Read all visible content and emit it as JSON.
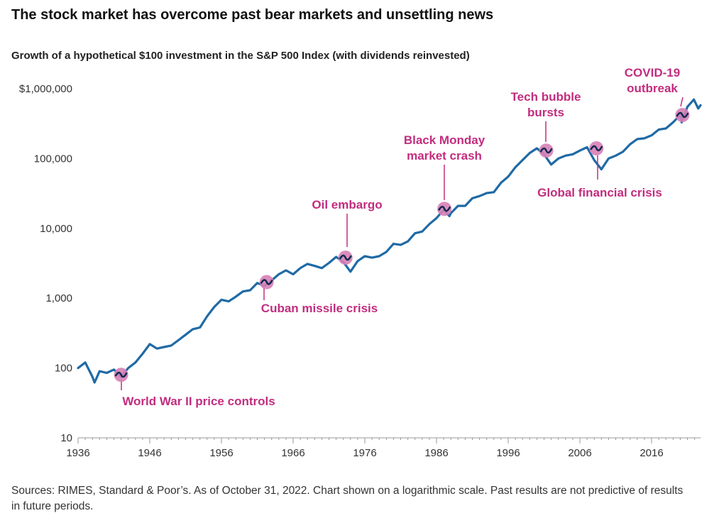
{
  "page": {
    "title": "The stock market has overcome past bear markets and unsettling news",
    "footer": "Sources: RIMES, Standard & Poor’s. As of October 31, 2022. Chart shown on a logarithmic scale. Past results are not predictive of results in future periods."
  },
  "colors": {
    "line": "#1f6aa5",
    "line_dark": "#0d2a4f",
    "marker": "#d77fb6",
    "annotation": "#c22d7e",
    "axis": "#999999"
  },
  "chart_data": {
    "type": "line",
    "title": "Growth of a hypothetical $100 investment in the S&P 500 Index (with dividends reinvested)",
    "xlabel": "",
    "ylabel": "",
    "y_scale": "log",
    "xlim": [
      1936,
      2022.83
    ],
    "ylim": [
      10,
      1000000
    ],
    "x_ticks": [
      1936,
      1946,
      1956,
      1966,
      1976,
      1986,
      1996,
      2006,
      2016
    ],
    "x_tick_labels": [
      "1936",
      "1946",
      "1956",
      "1966",
      "1976",
      "1986",
      "1996",
      "2006",
      "2016"
    ],
    "y_ticks": [
      10,
      100,
      1000,
      10000,
      100000,
      1000000
    ],
    "y_tick_labels": [
      "10",
      "100",
      "1,000",
      "10,000",
      "100,000",
      "$1,000,000"
    ],
    "series": [
      {
        "name": "",
        "points": [
          [
            1936,
            100
          ],
          [
            1937,
            120
          ],
          [
            1938,
            75
          ],
          [
            1938.3,
            62
          ],
          [
            1939,
            90
          ],
          [
            1940,
            85
          ],
          [
            1941,
            95
          ],
          [
            1942,
            75
          ],
          [
            1943,
            100
          ],
          [
            1944,
            120
          ],
          [
            1945,
            160
          ],
          [
            1946,
            220
          ],
          [
            1947,
            190
          ],
          [
            1948,
            200
          ],
          [
            1949,
            210
          ],
          [
            1950,
            250
          ],
          [
            1951,
            300
          ],
          [
            1952,
            360
          ],
          [
            1953,
            380
          ],
          [
            1954,
            550
          ],
          [
            1955,
            750
          ],
          [
            1956,
            950
          ],
          [
            1957,
            900
          ],
          [
            1958,
            1050
          ],
          [
            1959,
            1250
          ],
          [
            1960,
            1300
          ],
          [
            1961,
            1650
          ],
          [
            1962,
            1500
          ],
          [
            1963,
            1800
          ],
          [
            1964,
            2200
          ],
          [
            1965,
            2500
          ],
          [
            1966,
            2200
          ],
          [
            1967,
            2700
          ],
          [
            1968,
            3100
          ],
          [
            1969,
            2900
          ],
          [
            1970,
            2700
          ],
          [
            1971,
            3200
          ],
          [
            1972,
            3900
          ],
          [
            1973,
            3300
          ],
          [
            1974,
            2400
          ],
          [
            1975,
            3400
          ],
          [
            1976,
            4000
          ],
          [
            1977,
            3800
          ],
          [
            1978,
            4000
          ],
          [
            1979,
            4600
          ],
          [
            1980,
            6000
          ],
          [
            1981,
            5800
          ],
          [
            1982,
            6500
          ],
          [
            1983,
            8500
          ],
          [
            1984,
            9000
          ],
          [
            1985,
            11500
          ],
          [
            1986,
            14000
          ],
          [
            1987,
            18500
          ],
          [
            1987.8,
            15000
          ],
          [
            1988,
            16500
          ],
          [
            1989,
            21000
          ],
          [
            1990,
            21000
          ],
          [
            1991,
            27000
          ],
          [
            1992,
            29000
          ],
          [
            1993,
            32000
          ],
          [
            1994,
            33000
          ],
          [
            1995,
            45000
          ],
          [
            1996,
            55000
          ],
          [
            1997,
            75000
          ],
          [
            1998,
            95000
          ],
          [
            1999,
            120000
          ],
          [
            2000,
            140000
          ],
          [
            2001,
            115000
          ],
          [
            2002,
            82000
          ],
          [
            2003,
            100000
          ],
          [
            2004,
            110000
          ],
          [
            2005,
            115000
          ],
          [
            2006,
            130000
          ],
          [
            2007,
            145000
          ],
          [
            2008,
            95000
          ],
          [
            2009,
            70000
          ],
          [
            2010,
            100000
          ],
          [
            2011,
            110000
          ],
          [
            2012,
            125000
          ],
          [
            2013,
            160000
          ],
          [
            2014,
            190000
          ],
          [
            2015,
            195000
          ],
          [
            2016,
            215000
          ],
          [
            2017,
            260000
          ],
          [
            2018,
            270000
          ],
          [
            2019,
            330000
          ],
          [
            2020,
            420000
          ],
          [
            2020.2,
            330000
          ],
          [
            2021,
            550000
          ],
          [
            2021.9,
            700000
          ],
          [
            2022.5,
            520000
          ],
          [
            2022.83,
            580000
          ]
        ]
      }
    ],
    "annotations": [
      {
        "label_lines": [
          "World War II price controls"
        ],
        "x": 1942,
        "y": 80
      },
      {
        "label_lines": [
          "Cuban missile crisis"
        ],
        "x": 1962.3,
        "y": 1700
      },
      {
        "label_lines": [
          "Oil embargo"
        ],
        "x": 1973.3,
        "y": 3800
      },
      {
        "label_lines": [
          "Black Monday",
          "market crash"
        ],
        "x": 1987.1,
        "y": 19000
      },
      {
        "label_lines": [
          "Tech bubble",
          "bursts"
        ],
        "x": 2001.3,
        "y": 130000
      },
      {
        "label_lines": [
          "Global financial crisis"
        ],
        "x": 2008.3,
        "y": 140000
      },
      {
        "label_lines": [
          "COVID-19",
          "outbreak"
        ],
        "x": 2020.3,
        "y": 420000
      }
    ]
  }
}
